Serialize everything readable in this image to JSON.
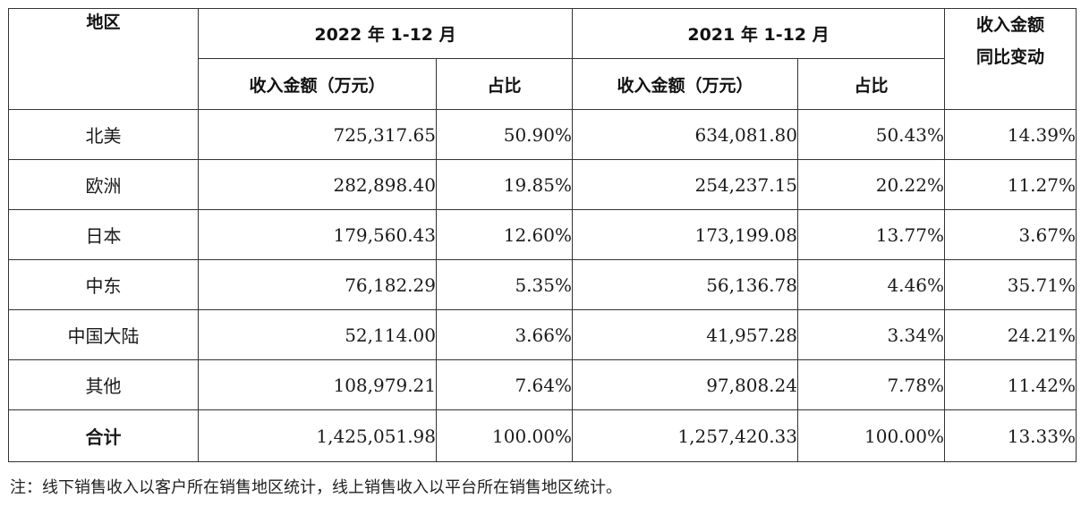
{
  "headers": {
    "region": "地区",
    "year2022": "2022 年 1-12 月",
    "year2021": "2021 年 1-12 月",
    "change_line1": "收入金额",
    "change_line2": "同比变动",
    "revenue": "收入金额（万元）",
    "share": "占比"
  },
  "rows": [
    {
      "region": "北美",
      "rev2022": "725,317.65",
      "share2022": "50.90%",
      "rev2021": "634,081.80",
      "share2021": "50.43%",
      "change": "14.39%"
    },
    {
      "region": "欧洲",
      "rev2022": "282,898.40",
      "share2022": "19.85%",
      "rev2021": "254,237.15",
      "share2021": "20.22%",
      "change": "11.27%"
    },
    {
      "region": "日本",
      "rev2022": "179,560.43",
      "share2022": "12.60%",
      "rev2021": "173,199.08",
      "share2021": "13.77%",
      "change": "3.67%"
    },
    {
      "region": "中东",
      "rev2022": "76,182.29",
      "share2022": "5.35%",
      "rev2021": "56,136.78",
      "share2021": "4.46%",
      "change": "35.71%"
    },
    {
      "region": "中国大陆",
      "rev2022": "52,114.00",
      "share2022": "3.66%",
      "rev2021": "41,957.28",
      "share2021": "3.34%",
      "change": "24.21%"
    },
    {
      "region": "其他",
      "rev2022": "108,979.21",
      "share2022": "7.64%",
      "rev2021": "97,808.24",
      "share2021": "7.78%",
      "change": "11.42%"
    }
  ],
  "total": {
    "label": "合计",
    "rev2022": "1,425,051.98",
    "share2022": "100.00%",
    "rev2021": "1,257,420.33",
    "share2021": "100.00%",
    "change": "13.33%"
  },
  "footnote": "注：线下销售收入以客户所在销售地区统计，线上销售收入以平台所在销售地区统计。"
}
